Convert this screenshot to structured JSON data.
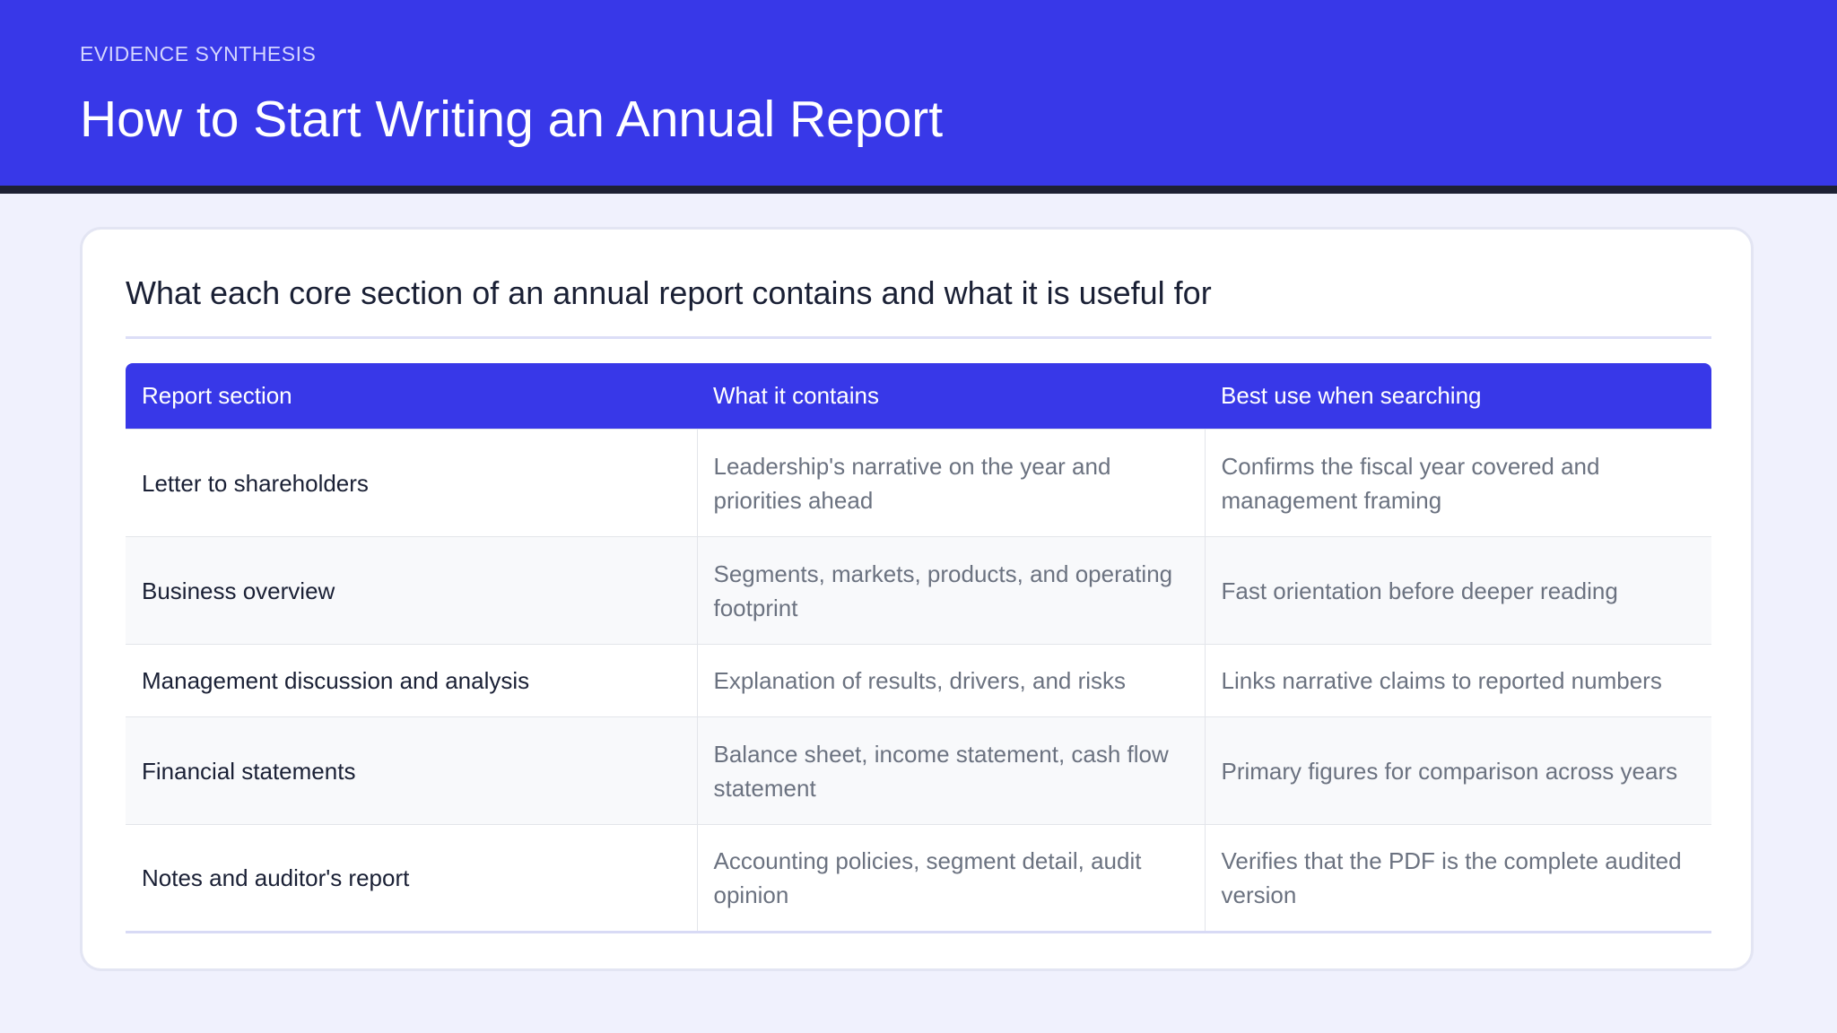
{
  "header": {
    "eyebrow": "EVIDENCE SYNTHESIS",
    "title": "How to Start Writing an Annual Report"
  },
  "card": {
    "title": "What each core section of an annual report contains and what it is useful for"
  },
  "table": {
    "columns": [
      "Report section",
      "What it contains",
      "Best use when searching"
    ],
    "rows": [
      [
        "Letter to shareholders",
        "Leadership's narrative on the year and priorities ahead",
        "Confirms the fiscal year covered and management framing"
      ],
      [
        "Business overview",
        "Segments, markets, products, and operating footprint",
        "Fast orientation before deeper reading"
      ],
      [
        "Management discussion and analysis",
        "Explanation of results, drivers, and risks",
        "Links narrative claims to reported numbers"
      ],
      [
        "Financial statements",
        "Balance sheet, income statement, cash flow statement",
        "Primary figures for comparison across years"
      ],
      [
        "Notes and auditor's report",
        "Accounting policies, segment detail, audit opinion",
        "Verifies that the PDF is the complete audited version"
      ]
    ]
  }
}
